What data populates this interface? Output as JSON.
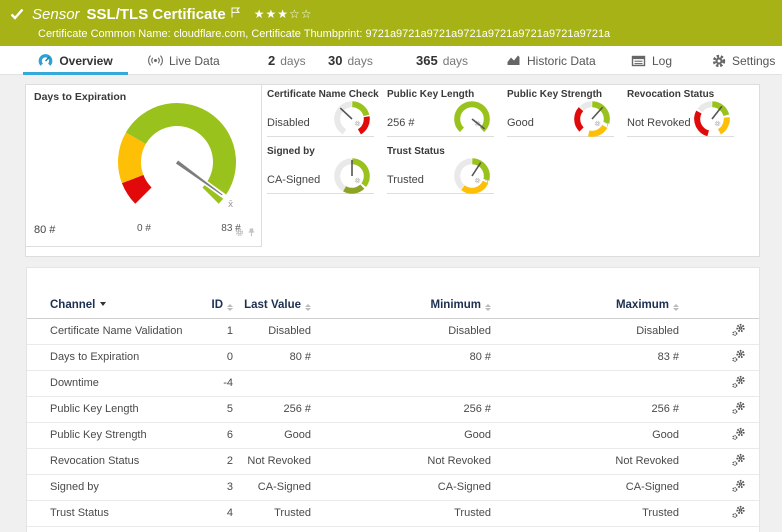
{
  "header": {
    "status_icon": "check-icon",
    "kind": "Sensor",
    "title": "SSL/TLS Certificate",
    "rating": {
      "filled": 3,
      "total": 5
    },
    "subtitle": "Certificate Common Name: cloudflare.com, Certificate Thumbprint: 9721a9721a9721a9721a9721a9721a9721a9721a",
    "bg_color": "#a6b216"
  },
  "tabs": [
    {
      "id": "overview",
      "icon": "gauge-icon",
      "label": "Overview",
      "selected": true
    },
    {
      "id": "live-data",
      "icon": "live-icon",
      "label": "Live Data",
      "selected": false
    },
    {
      "id": "2-days",
      "num": "2",
      "label": "days",
      "selected": false
    },
    {
      "id": "30-days",
      "num": "30",
      "label": "days",
      "selected": false
    },
    {
      "id": "365-days",
      "num": "365",
      "label": "days",
      "selected": false
    },
    {
      "id": "historic-data",
      "icon": "chart-icon",
      "label": "Historic Data",
      "selected": false
    },
    {
      "id": "log",
      "icon": "log-icon",
      "label": "Log",
      "selected": false
    },
    {
      "id": "settings",
      "icon": "gear-icon",
      "label": "Settings",
      "selected": false
    }
  ],
  "colors": {
    "green": "#9ac21d",
    "olive": "#8da326",
    "yellow": "#fdc006",
    "red": "#e10909",
    "track": "#e9e9e9",
    "needle": "#7d7d7d",
    "accent_blue": "#36a9db"
  },
  "chart_data": [
    {
      "type": "gauge",
      "title": "Days to Expiration",
      "value": 80,
      "value_label": "80 #",
      "min": 0,
      "min_label": "0 #",
      "max": 83,
      "max_label": "83 #",
      "avg_marker": "x̄",
      "span_deg": 270,
      "needle_deg": 126,
      "segments": [
        {
          "a0": -135,
          "a1": -111,
          "color": "#e10909"
        },
        {
          "a0": -111,
          "a1": -60,
          "color": "#fdc006"
        },
        {
          "a0": -60,
          "a1": 135,
          "color": "#9ac21d"
        }
      ]
    },
    {
      "type": "gauge",
      "title": "Certificate Name Check",
      "value_label": "Disabled",
      "needle_deg": -47,
      "segments": [
        {
          "a0": -150,
          "a1": -1,
          "color": "#e9e9e9"
        },
        {
          "a0": 1,
          "a1": 76,
          "color": "#9ac21d"
        },
        {
          "a0": 81,
          "a1": 150,
          "color": "#e10909"
        }
      ]
    },
    {
      "type": "gauge",
      "title": "Public Key Length",
      "value_label": "256 #",
      "needle_deg": 128,
      "segments": [
        {
          "a0": -137,
          "a1": 137,
          "color": "#9ac21d"
        }
      ]
    },
    {
      "type": "gauge",
      "title": "Public Key Strength",
      "value_label": "Good",
      "needle_deg": 42,
      "segments": [
        {
          "a0": -135,
          "a1": -48,
          "color": "#e10909"
        },
        {
          "a0": -44,
          "a1": -1,
          "color": "#e9e9e9"
        },
        {
          "a0": 1,
          "a1": 105,
          "color": "#9ac21d"
        },
        {
          "a0": 120,
          "a1": 193,
          "color": "#fdc006"
        }
      ]
    },
    {
      "type": "gauge",
      "title": "Revocation Status",
      "value_label": "Not Revoked",
      "needle_deg": 38,
      "segments": [
        {
          "a0": -165,
          "a1": -62,
          "color": "#e10909"
        },
        {
          "a0": -55,
          "a1": -1,
          "color": "#e9e9e9"
        },
        {
          "a0": 1,
          "a1": 75,
          "color": "#9ac21d"
        },
        {
          "a0": 84,
          "a1": 150,
          "color": "#fdc006"
        }
      ]
    },
    {
      "type": "gauge",
      "title": "Signed by",
      "value_label": "CA-Signed",
      "needle_deg": 0,
      "segments": [
        {
          "a0": -150,
          "a1": -1,
          "color": "#e9e9e9"
        },
        {
          "a0": 1,
          "a1": 128,
          "color": "#9ac21d"
        },
        {
          "a0": 136,
          "a1": 210,
          "color": "#8da326"
        }
      ]
    },
    {
      "type": "gauge",
      "title": "Trust Status",
      "value_label": "Trusted",
      "needle_deg": 33,
      "segments": [
        {
          "a0": -140,
          "a1": -1,
          "color": "#e9e9e9"
        },
        {
          "a0": 1,
          "a1": 105,
          "color": "#9ac21d"
        },
        {
          "a0": 114,
          "a1": 218,
          "color": "#fdc006"
        }
      ]
    }
  ],
  "table": {
    "columns": [
      {
        "label": "Channel",
        "sort": "desc",
        "align": "left"
      },
      {
        "label": "ID",
        "sort": "both",
        "align": "right"
      },
      {
        "label": "Last Value",
        "sort": "both",
        "align": "right"
      },
      {
        "label": "Minimum",
        "sort": "both",
        "align": "right"
      },
      {
        "label": "Maximum",
        "sort": "both",
        "align": "right"
      }
    ],
    "rows": [
      {
        "channel": "Certificate Name Validation",
        "id": "1",
        "last": "Disabled",
        "min": "Disabled",
        "max": "Disabled"
      },
      {
        "channel": "Days to Expiration",
        "id": "0",
        "last": "80 #",
        "min": "80 #",
        "max": "83 #"
      },
      {
        "channel": "Downtime",
        "id": "-4",
        "last": "",
        "min": "",
        "max": ""
      },
      {
        "channel": "Public Key Length",
        "id": "5",
        "last": "256 #",
        "min": "256 #",
        "max": "256 #"
      },
      {
        "channel": "Public Key Strength",
        "id": "6",
        "last": "Good",
        "min": "Good",
        "max": "Good"
      },
      {
        "channel": "Revocation Status",
        "id": "2",
        "last": "Not Revoked",
        "min": "Not Revoked",
        "max": "Not Revoked"
      },
      {
        "channel": "Signed by",
        "id": "3",
        "last": "CA-Signed",
        "min": "CA-Signed",
        "max": "CA-Signed"
      },
      {
        "channel": "Trust Status",
        "id": "4",
        "last": "Trusted",
        "min": "Trusted",
        "max": "Trusted"
      }
    ]
  }
}
